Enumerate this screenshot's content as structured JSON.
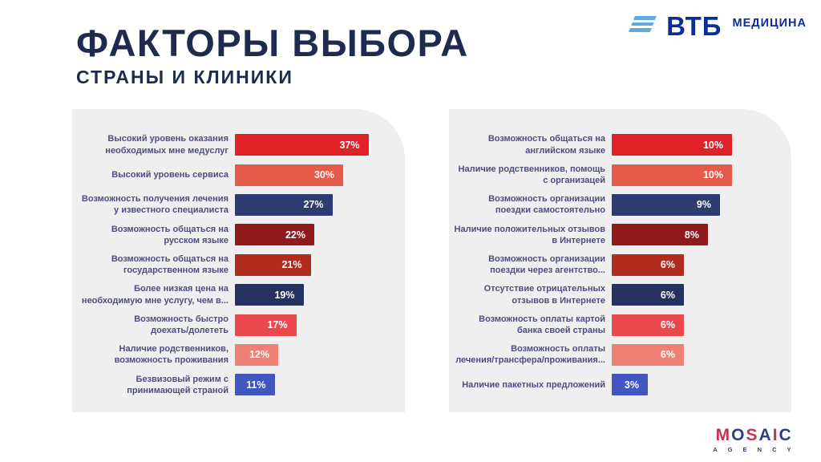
{
  "header": {
    "title": "ФАКТОРЫ ВЫБОРА",
    "subtitle": "СТРАНЫ И КЛИНИКИ",
    "logo": {
      "brand": "ВТБ",
      "sub_brand": "МЕДИЦИНА"
    }
  },
  "footer": {
    "agency": "MOSAIC",
    "agency_sub": "A G E N C Y"
  },
  "colors": {
    "title_text": "#1F2B4E",
    "label_text": "#4D4D82",
    "panel_bg": "#EFEFF0",
    "vtb_blue": "#0B2E96",
    "vtb_lightblue": "#5FABE1",
    "bright_red": "#E02127",
    "salmon": "#E65A4C",
    "navy": "#2E3B72",
    "maroon": "#8E1A1C",
    "brick_red": "#AF2C1F",
    "dark_navy": "#25315F",
    "light_red": "#E9484D",
    "light_salmon": "#EE8173",
    "medium_blue": "#4156BE"
  },
  "chart_data": [
    {
      "type": "bar",
      "orientation": "horizontal",
      "panel": "left",
      "value_suffix": "%",
      "xlim": [
        0,
        47
      ],
      "grid": false,
      "legend": false,
      "categories": [
        "Высокий уровень оказания\nнеобходимых мне медуслуг",
        "Высокий уровень сервиса",
        "Возможность получения лечения\nу известного специалиста",
        "Возможность общаться на\nрусском языке",
        "Возможность общаться на\nгосударственном языке",
        "Более низкая цена на\nнеобходимую мне услугу, чем в...",
        "Возможность быстро\nдоехать/долететь",
        "Наличие родственников,\nвозможность проживания",
        "Безвизовый режим с\nпринимающей страной"
      ],
      "values": [
        37,
        30,
        27,
        22,
        21,
        19,
        17,
        12,
        11
      ],
      "bar_colors": [
        "#E02127",
        "#E65A4C",
        "#2E3B72",
        "#8E1A1C",
        "#AF2C1F",
        "#25315F",
        "#E9484D",
        "#EE8173",
        "#4156BE"
      ]
    },
    {
      "type": "bar",
      "orientation": "horizontal",
      "panel": "right",
      "value_suffix": "%",
      "xlim": [
        0,
        14
      ],
      "grid": false,
      "legend": false,
      "categories": [
        "Возможность общаться на\nанглийском языке",
        "Наличие родственников, помощь\nс организацей",
        "Возможность организации\nпоездки самостоятельно",
        "Наличие положительных отзывов\nв Интернете",
        "Возможность организации\nпоездки через агентство...",
        "Отсутствие отрицательных\nотзывов в Интернете",
        "Возможность оплаты картой\nбанка своей страны",
        "Возможность оплаты\nлечения/трансфера/проживания...",
        "Наличие пакетных предложений"
      ],
      "values": [
        10,
        10,
        9,
        8,
        6,
        6,
        6,
        6,
        3
      ],
      "bar_colors": [
        "#E02127",
        "#E65A4C",
        "#2E3B72",
        "#8E1A1C",
        "#AF2C1F",
        "#25315F",
        "#E9484D",
        "#EE8173",
        "#4156BE"
      ]
    }
  ]
}
